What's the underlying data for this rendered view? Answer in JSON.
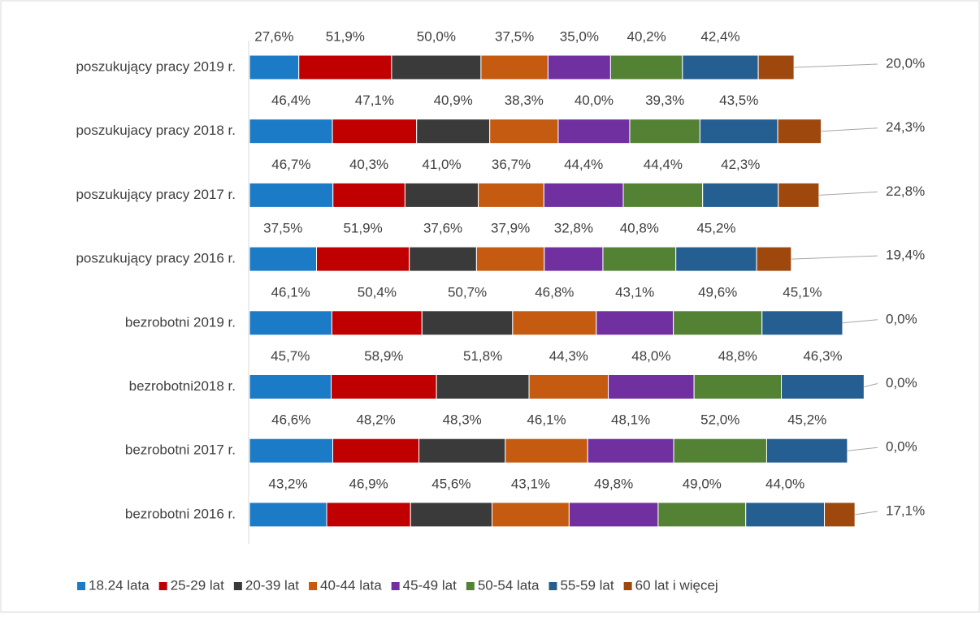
{
  "chart_data": {
    "type": "stacked-bar",
    "orientation": "horizontal",
    "categories": [
      "poszukujący pracy 2019 r.",
      "poszukujacy pracy 2018 r.",
      "poszukujący pracy 2017 r.",
      "poszukujący pracy 2016 r.",
      "bezrobotni 2019 r.",
      "bezrobotni2018 r.",
      "bezrobotni 2017 r.",
      "bezrobotni 2016 r."
    ],
    "series": [
      {
        "name": "18.24 lata",
        "color": "#1b7bc7",
        "values": [
          27.6,
          46.4,
          46.7,
          37.5,
          46.1,
          45.7,
          46.6,
          43.2
        ],
        "value_labels": [
          "27,6%",
          "46,4%",
          "46,7%",
          "37,5%",
          "46,1%",
          "45,7%",
          "46,6%",
          "43,2%"
        ]
      },
      {
        "name": "25-29 lat",
        "color": "#c00000",
        "values": [
          51.9,
          47.1,
          40.3,
          51.9,
          50.4,
          58.9,
          48.2,
          46.9
        ],
        "value_labels": [
          "51,9%",
          "47,1%",
          "40,3%",
          "51,9%",
          "50,4%",
          "58,9%",
          "48,2%",
          "46,9%"
        ]
      },
      {
        "name": "20-39 lat",
        "color": "#3a3a3a",
        "values": [
          50.0,
          40.9,
          41.0,
          37.6,
          50.7,
          51.8,
          48.3,
          45.6
        ],
        "value_labels": [
          "50,0%",
          "40,9%",
          "41,0%",
          "37,6%",
          "50,7%",
          "51,8%",
          "48,3%",
          "45,6%"
        ]
      },
      {
        "name": "40-44 lata",
        "color": "#c55a11",
        "values": [
          37.5,
          38.3,
          36.7,
          37.9,
          46.8,
          44.3,
          46.1,
          43.1
        ],
        "value_labels": [
          "37,5%",
          "38,3%",
          "36,7%",
          "37,9%",
          "46,8%",
          "44,3%",
          "46,1%",
          "43,1%"
        ]
      },
      {
        "name": "45-49 lat",
        "color": "#7030a0",
        "values": [
          35.0,
          40.0,
          44.4,
          32.8,
          43.1,
          48.0,
          48.1,
          49.8
        ],
        "value_labels": [
          "35,0%",
          "40,0%",
          "44,4%",
          "32,8%",
          "43,1%",
          "48,0%",
          "48,1%",
          "49,8%"
        ]
      },
      {
        "name": "50-54 lata",
        "color": "#548235",
        "values": [
          40.2,
          39.3,
          44.4,
          40.8,
          49.6,
          48.8,
          52.0,
          49.0
        ],
        "value_labels": [
          "40,2%",
          "39,3%",
          "44,4%",
          "40,8%",
          "49,6%",
          "48,8%",
          "52,0%",
          "49,0%"
        ]
      },
      {
        "name": "55-59 lat",
        "color": "#255e91",
        "values": [
          42.4,
          43.5,
          42.3,
          45.2,
          45.1,
          46.3,
          45.2,
          44.0
        ],
        "value_labels": [
          "42,4%",
          "43,5%",
          "42,3%",
          "45,2%",
          "45,1%",
          "46,3%",
          "45,2%",
          "44,0%"
        ]
      },
      {
        "name": "60 lat i więcej",
        "color": "#9e480e",
        "values": [
          20.0,
          24.3,
          22.8,
          19.4,
          0.0,
          0.0,
          0.0,
          17.1
        ],
        "value_labels": [
          "20,0%",
          "24,3%",
          "22,8%",
          "19,4%",
          "0,0%",
          "0,0%",
          "0,0%",
          "17,1%"
        ]
      }
    ],
    "legend": "bottom"
  }
}
